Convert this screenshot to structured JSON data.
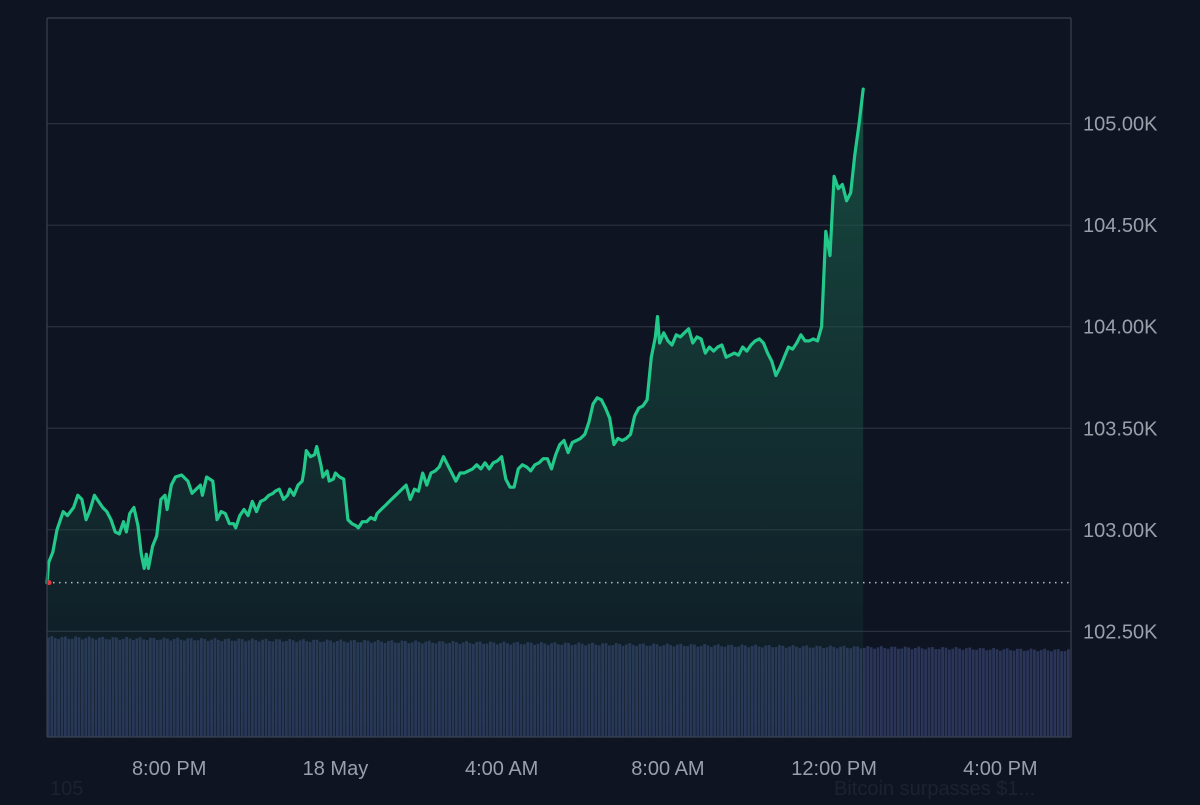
{
  "colors": {
    "background": "#0e1422",
    "line": "#22c98a",
    "area_top": "#1a5a48",
    "grid": "#2a3140",
    "volume": "#2a3558",
    "axis_text": "#9aa0aa",
    "baseline_dots": "#b8bcc4",
    "start_marker": "#e0393e"
  },
  "chart_data": {
    "type": "area",
    "title": "",
    "xlabel": "",
    "ylabel": "",
    "ylim": [
      101.98,
      105.52
    ],
    "y_ticks": [
      {
        "value": 102.5,
        "label": "102.50K"
      },
      {
        "value": 103.0,
        "label": "103.00K"
      },
      {
        "value": 103.5,
        "label": "103.50K"
      },
      {
        "value": 104.0,
        "label": "104.00K"
      },
      {
        "value": 104.5,
        "label": "104.50K"
      },
      {
        "value": 105.0,
        "label": "105.00K"
      }
    ],
    "x_ticks": [
      {
        "value": 20,
        "label": "8:00 PM"
      },
      {
        "value": 24,
        "label": "18 May"
      },
      {
        "value": 28,
        "label": "4:00 AM"
      },
      {
        "value": 32,
        "label": "8:00 AM"
      },
      {
        "value": 36,
        "label": "12:00 PM"
      },
      {
        "value": 40,
        "label": "4:00 PM"
      }
    ],
    "xlim": [
      17.06,
      41.7
    ],
    "baseline": 102.74,
    "x_unit": "hours since 17 May 00:00",
    "series": [
      {
        "name": "",
        "unit": "K USD",
        "points": [
          [
            17.06,
            102.74
          ],
          [
            17.1,
            102.84
          ],
          [
            17.2,
            102.89
          ],
          [
            17.3,
            103.0
          ],
          [
            17.45,
            103.09
          ],
          [
            17.55,
            103.07
          ],
          [
            17.7,
            103.11
          ],
          [
            17.8,
            103.17
          ],
          [
            17.9,
            103.15
          ],
          [
            18.0,
            103.05
          ],
          [
            18.1,
            103.1
          ],
          [
            18.2,
            103.17
          ],
          [
            18.3,
            103.14
          ],
          [
            18.4,
            103.11
          ],
          [
            18.5,
            103.09
          ],
          [
            18.6,
            103.05
          ],
          [
            18.7,
            102.99
          ],
          [
            18.8,
            102.98
          ],
          [
            18.9,
            103.04
          ],
          [
            18.97,
            102.99
          ],
          [
            19.05,
            103.08
          ],
          [
            19.15,
            103.11
          ],
          [
            19.25,
            103.02
          ],
          [
            19.33,
            102.88
          ],
          [
            19.4,
            102.81
          ],
          [
            19.45,
            102.88
          ],
          [
            19.5,
            102.81
          ],
          [
            19.6,
            102.92
          ],
          [
            19.7,
            102.97
          ],
          [
            19.8,
            103.15
          ],
          [
            19.9,
            103.17
          ],
          [
            19.95,
            103.1
          ],
          [
            20.05,
            103.22
          ],
          [
            20.15,
            103.26
          ],
          [
            20.3,
            103.27
          ],
          [
            20.45,
            103.24
          ],
          [
            20.55,
            103.18
          ],
          [
            20.65,
            103.2
          ],
          [
            20.75,
            103.22
          ],
          [
            20.8,
            103.17
          ],
          [
            20.9,
            103.26
          ],
          [
            21.05,
            103.24
          ],
          [
            21.15,
            103.05
          ],
          [
            21.25,
            103.09
          ],
          [
            21.35,
            103.08
          ],
          [
            21.45,
            103.03
          ],
          [
            21.55,
            103.03
          ],
          [
            21.6,
            103.01
          ],
          [
            21.7,
            103.07
          ],
          [
            21.8,
            103.1
          ],
          [
            21.9,
            103.07
          ],
          [
            22.0,
            103.14
          ],
          [
            22.1,
            103.09
          ],
          [
            22.2,
            103.14
          ],
          [
            22.3,
            103.15
          ],
          [
            22.4,
            103.17
          ],
          [
            22.5,
            103.18
          ],
          [
            22.55,
            103.19
          ],
          [
            22.65,
            103.2
          ],
          [
            22.75,
            103.15
          ],
          [
            22.85,
            103.17
          ],
          [
            22.9,
            103.2
          ],
          [
            23.0,
            103.17
          ],
          [
            23.1,
            103.22
          ],
          [
            23.2,
            103.24
          ],
          [
            23.25,
            103.3
          ],
          [
            23.3,
            103.39
          ],
          [
            23.4,
            103.36
          ],
          [
            23.5,
            103.37
          ],
          [
            23.55,
            103.41
          ],
          [
            23.65,
            103.32
          ],
          [
            23.7,
            103.26
          ],
          [
            23.8,
            103.29
          ],
          [
            23.85,
            103.24
          ],
          [
            23.95,
            103.25
          ],
          [
            24.0,
            103.28
          ],
          [
            24.1,
            103.26
          ],
          [
            24.2,
            103.25
          ],
          [
            24.3,
            103.05
          ],
          [
            24.4,
            103.03
          ],
          [
            24.5,
            103.02
          ],
          [
            24.55,
            103.01
          ],
          [
            24.65,
            103.04
          ],
          [
            24.75,
            103.04
          ],
          [
            24.85,
            103.06
          ],
          [
            24.95,
            103.05
          ],
          [
            25.0,
            103.08
          ],
          [
            25.1,
            103.1
          ],
          [
            25.2,
            103.12
          ],
          [
            25.3,
            103.14
          ],
          [
            25.4,
            103.16
          ],
          [
            25.5,
            103.18
          ],
          [
            25.6,
            103.2
          ],
          [
            25.7,
            103.22
          ],
          [
            25.8,
            103.15
          ],
          [
            25.9,
            103.2
          ],
          [
            26.0,
            103.19
          ],
          [
            26.1,
            103.28
          ],
          [
            26.2,
            103.22
          ],
          [
            26.3,
            103.28
          ],
          [
            26.4,
            103.29
          ],
          [
            26.5,
            103.31
          ],
          [
            26.6,
            103.36
          ],
          [
            26.7,
            103.32
          ],
          [
            26.8,
            103.28
          ],
          [
            26.9,
            103.24
          ],
          [
            27.0,
            103.28
          ],
          [
            27.1,
            103.28
          ],
          [
            27.2,
            103.29
          ],
          [
            27.3,
            103.3
          ],
          [
            27.4,
            103.32
          ],
          [
            27.5,
            103.3
          ],
          [
            27.6,
            103.33
          ],
          [
            27.7,
            103.3
          ],
          [
            27.8,
            103.33
          ],
          [
            27.9,
            103.34
          ],
          [
            28.0,
            103.36
          ],
          [
            28.1,
            103.25
          ],
          [
            28.2,
            103.21
          ],
          [
            28.3,
            103.21
          ],
          [
            28.4,
            103.3
          ],
          [
            28.5,
            103.32
          ],
          [
            28.6,
            103.31
          ],
          [
            28.7,
            103.29
          ],
          [
            28.8,
            103.32
          ],
          [
            28.9,
            103.33
          ],
          [
            29.0,
            103.35
          ],
          [
            29.1,
            103.35
          ],
          [
            29.2,
            103.3
          ],
          [
            29.3,
            103.37
          ],
          [
            29.4,
            103.42
          ],
          [
            29.5,
            103.44
          ],
          [
            29.6,
            103.38
          ],
          [
            29.7,
            103.43
          ],
          [
            29.8,
            103.44
          ],
          [
            29.9,
            103.45
          ],
          [
            30.0,
            103.47
          ],
          [
            30.1,
            103.53
          ],
          [
            30.2,
            103.62
          ],
          [
            30.3,
            103.65
          ],
          [
            30.4,
            103.64
          ],
          [
            30.5,
            103.6
          ],
          [
            30.6,
            103.55
          ],
          [
            30.7,
            103.42
          ],
          [
            30.8,
            103.45
          ],
          [
            30.9,
            103.44
          ],
          [
            31.0,
            103.45
          ],
          [
            31.1,
            103.47
          ],
          [
            31.2,
            103.56
          ],
          [
            31.3,
            103.6
          ],
          [
            31.4,
            103.61
          ],
          [
            31.5,
            103.64
          ],
          [
            31.6,
            103.85
          ],
          [
            31.7,
            103.95
          ],
          [
            31.75,
            104.05
          ],
          [
            31.8,
            103.92
          ],
          [
            31.9,
            103.97
          ],
          [
            32.0,
            103.93
          ],
          [
            32.1,
            103.91
          ],
          [
            32.2,
            103.96
          ],
          [
            32.3,
            103.95
          ],
          [
            32.4,
            103.97
          ],
          [
            32.5,
            103.99
          ],
          [
            32.6,
            103.92
          ],
          [
            32.7,
            103.95
          ],
          [
            32.8,
            103.94
          ],
          [
            32.9,
            103.87
          ],
          [
            33.0,
            103.9
          ],
          [
            33.1,
            103.88
          ],
          [
            33.2,
            103.9
          ],
          [
            33.3,
            103.91
          ],
          [
            33.4,
            103.85
          ],
          [
            33.5,
            103.86
          ],
          [
            33.6,
            103.87
          ],
          [
            33.7,
            103.86
          ],
          [
            33.8,
            103.9
          ],
          [
            33.9,
            103.88
          ],
          [
            34.0,
            103.91
          ],
          [
            34.1,
            103.93
          ],
          [
            34.2,
            103.94
          ],
          [
            34.3,
            103.92
          ],
          [
            34.4,
            103.87
          ],
          [
            34.5,
            103.83
          ],
          [
            34.6,
            103.76
          ],
          [
            34.7,
            103.8
          ],
          [
            34.8,
            103.85
          ],
          [
            34.9,
            103.9
          ],
          [
            35.0,
            103.89
          ],
          [
            35.1,
            103.92
          ],
          [
            35.2,
            103.96
          ],
          [
            35.3,
            103.93
          ],
          [
            35.4,
            103.93
          ],
          [
            35.5,
            103.94
          ],
          [
            35.6,
            103.93
          ],
          [
            35.7,
            104.0
          ],
          [
            35.8,
            104.47
          ],
          [
            35.9,
            104.35
          ],
          [
            36.0,
            104.74
          ],
          [
            36.1,
            104.68
          ],
          [
            36.2,
            104.7
          ],
          [
            36.3,
            104.62
          ],
          [
            36.4,
            104.66
          ],
          [
            36.5,
            104.85
          ],
          [
            36.6,
            105.0
          ],
          [
            36.7,
            105.17
          ]
        ]
      }
    ],
    "volume": {
      "unit": "relative",
      "start": 17.06,
      "end": 41.7,
      "levels": [
        [
          17.06,
          1.0
        ],
        [
          18.0,
          0.995
        ],
        [
          19.0,
          0.99
        ],
        [
          20.0,
          0.985
        ],
        [
          21.0,
          0.98
        ],
        [
          22.0,
          0.975
        ],
        [
          23.0,
          0.97
        ],
        [
          24.0,
          0.965
        ],
        [
          25.0,
          0.96
        ],
        [
          26.0,
          0.955
        ],
        [
          27.0,
          0.95
        ],
        [
          28.0,
          0.945
        ],
        [
          29.0,
          0.94
        ],
        [
          30.0,
          0.935
        ],
        [
          31.0,
          0.93
        ],
        [
          32.0,
          0.925
        ],
        [
          33.0,
          0.92
        ],
        [
          34.0,
          0.915
        ],
        [
          35.0,
          0.91
        ],
        [
          36.0,
          0.905
        ],
        [
          37.0,
          0.9
        ],
        [
          38.0,
          0.895
        ],
        [
          39.0,
          0.89
        ],
        [
          40.0,
          0.88
        ],
        [
          41.0,
          0.875
        ],
        [
          41.7,
          0.87
        ]
      ]
    }
  },
  "footer": {
    "left_text": "105",
    "right_text": "Bitcoin surpasses $1..."
  }
}
